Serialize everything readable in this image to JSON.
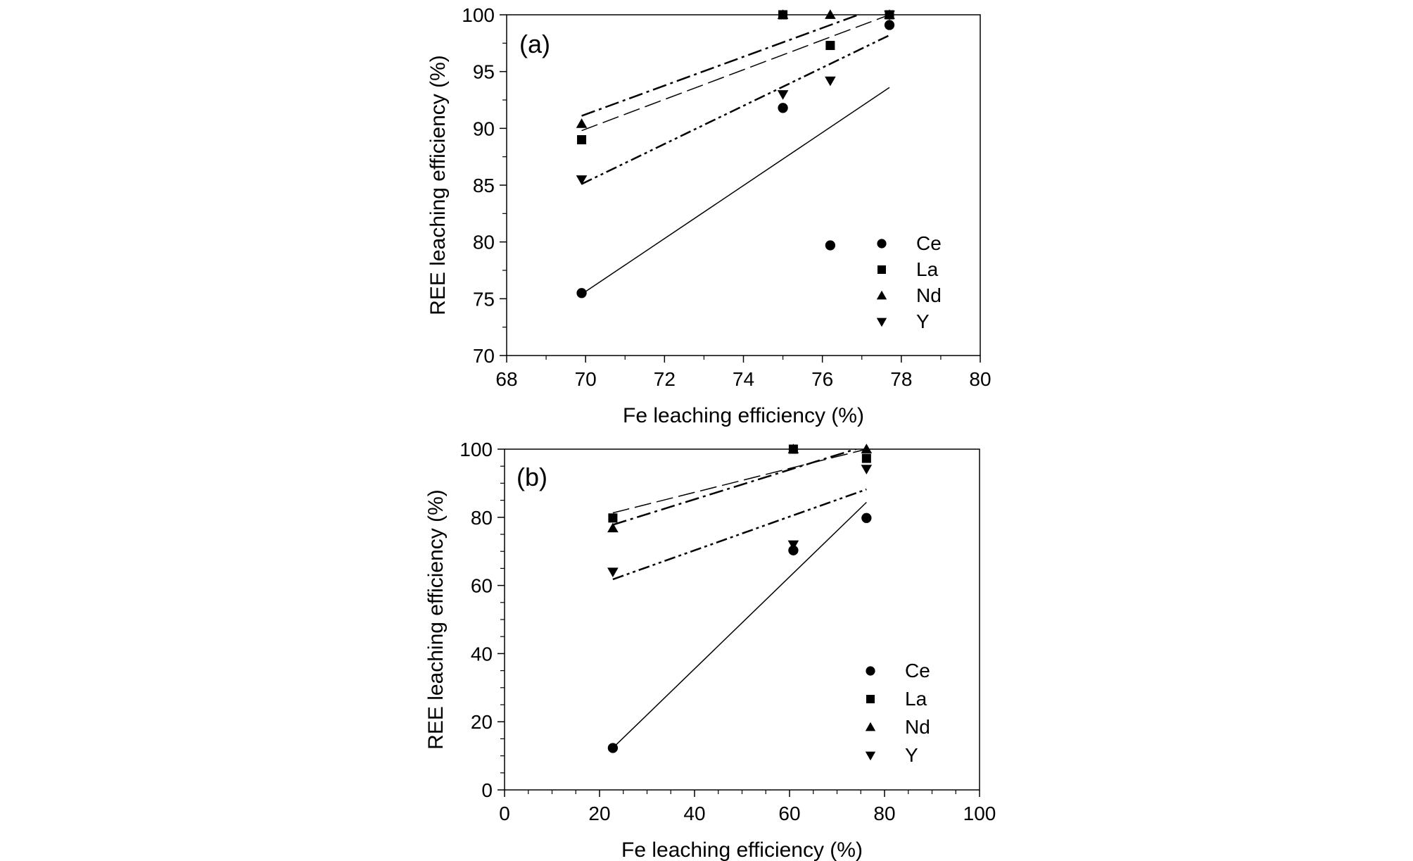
{
  "chart_data": [
    {
      "type": "scatter",
      "panel_label": "(a)",
      "xlabel": "Fe leaching efficiency (%)",
      "ylabel": "REE leaching efficiency (%)",
      "xlim": [
        68,
        80
      ],
      "ylim": [
        70,
        100
      ],
      "xticks": [
        68,
        70,
        72,
        74,
        76,
        78,
        80
      ],
      "yticks": [
        70,
        75,
        80,
        85,
        90,
        95,
        100
      ],
      "legend_position": "bottom-right",
      "series": [
        {
          "name": "Ce",
          "marker": "circle",
          "x": [
            69.9,
            75.0,
            76.2,
            77.7
          ],
          "y": [
            75.5,
            91.8,
            79.7,
            99.1
          ],
          "fit": {
            "style": "solid",
            "x": [
              69.9,
              77.7
            ],
            "y": [
              75.4,
              93.6
            ]
          }
        },
        {
          "name": "La",
          "marker": "square",
          "x": [
            69.9,
            75.0,
            76.2,
            77.7
          ],
          "y": [
            89.0,
            100.0,
            97.3,
            100.0
          ],
          "fit": {
            "style": "dashed",
            "x": [
              69.9,
              77.7
            ],
            "y": [
              89.8,
              100.0
            ]
          }
        },
        {
          "name": "Nd",
          "marker": "triangle-up",
          "x": [
            69.9,
            75.0,
            76.2,
            77.7
          ],
          "y": [
            90.4,
            100.0,
            100.0,
            100.0
          ],
          "fit": {
            "style": "dashdot",
            "x": [
              69.9,
              77.7
            ],
            "y": [
              91.1,
              101.0
            ]
          }
        },
        {
          "name": "Y",
          "marker": "triangle-down",
          "x": [
            69.9,
            75.0,
            76.2,
            77.7
          ],
          "y": [
            85.5,
            93.0,
            94.2,
            100.0
          ],
          "fit": {
            "style": "dashdotdot",
            "x": [
              69.9,
              77.7
            ],
            "y": [
              85.1,
              98.2
            ]
          }
        }
      ]
    },
    {
      "type": "scatter",
      "panel_label": "(b)",
      "xlabel": "Fe leaching efficiency (%)",
      "ylabel": "REE leaching efficiency (%)",
      "xlim": [
        0,
        100
      ],
      "ylim": [
        0,
        100
      ],
      "xticks": [
        0,
        20,
        40,
        60,
        80,
        100
      ],
      "yticks": [
        0,
        20,
        40,
        60,
        80,
        100
      ],
      "legend_position": "bottom-right",
      "series": [
        {
          "name": "Ce",
          "marker": "circle",
          "x": [
            22.8,
            60.8,
            76.2
          ],
          "y": [
            12.3,
            70.3,
            79.8
          ],
          "fit": {
            "style": "solid",
            "x": [
              22.8,
              76.2
            ],
            "y": [
              12.3,
              84.4
            ]
          }
        },
        {
          "name": "La",
          "marker": "square",
          "x": [
            22.8,
            60.8,
            76.2
          ],
          "y": [
            79.8,
            100.0,
            97.3
          ],
          "fit": {
            "style": "dashed",
            "x": [
              22.8,
              76.2
            ],
            "y": [
              81.3,
              100.0
            ]
          }
        },
        {
          "name": "Nd",
          "marker": "triangle-up",
          "x": [
            22.8,
            60.8,
            76.2
          ],
          "y": [
            76.8,
            100.0,
            100.0
          ],
          "fit": {
            "style": "dashdot",
            "x": [
              22.8,
              76.2
            ],
            "y": [
              77.8,
              101.0
            ]
          }
        },
        {
          "name": "Y",
          "marker": "triangle-down",
          "x": [
            22.8,
            60.8,
            76.2
          ],
          "y": [
            64.0,
            72.0,
            94.2
          ],
          "fit": {
            "style": "dashdotdot",
            "x": [
              22.8,
              76.2
            ],
            "y": [
              61.8,
              88.2
            ]
          }
        }
      ]
    }
  ]
}
